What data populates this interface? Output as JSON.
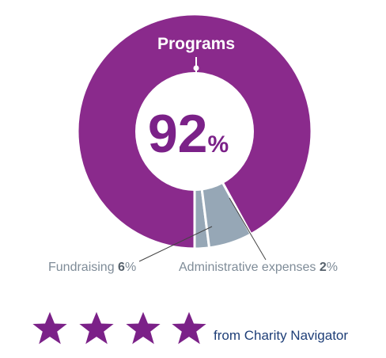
{
  "chart_data": {
    "type": "pie",
    "style": "donut",
    "slices": [
      {
        "name": "Programs",
        "value": 92,
        "color": "#8a2a8c"
      },
      {
        "name": "Fundraising",
        "value": 6,
        "color": "#96a7b6"
      },
      {
        "name": "Administrative expenses",
        "value": 2,
        "color": "#96a7b6"
      }
    ],
    "labels": {
      "programs_name": "Programs",
      "programs_value": "92",
      "percent_sign": "%",
      "fundraising_name": "Fundraising ",
      "fundraising_value": "6",
      "admin_name": "Administrative expenses ",
      "admin_value": "2",
      "percent_suffix": "%"
    }
  },
  "rating": {
    "stars": 4,
    "star_color": "#7b2188",
    "text": "from Charity Navigator"
  }
}
